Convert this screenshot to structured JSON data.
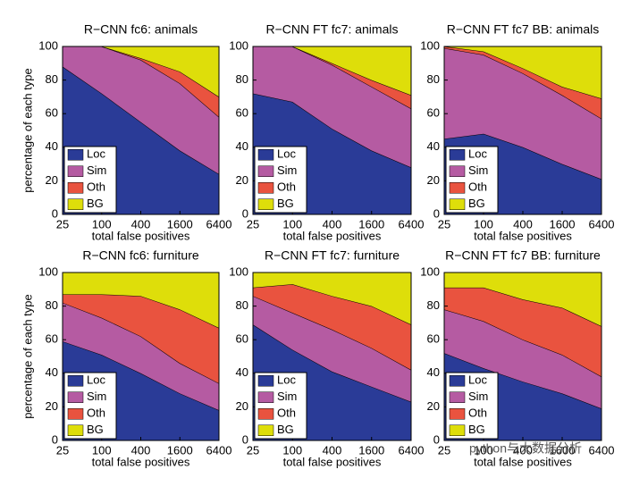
{
  "chart_data": [
    {
      "type": "area",
      "stacked": true,
      "title": "R−CNN fc6: animals",
      "xlabel": "total false positives",
      "ylabel": "percentage of each type",
      "x": [
        25,
        100,
        400,
        1600,
        6400
      ],
      "xlog": true,
      "xlim": [
        25,
        6400
      ],
      "xticks": [
        25,
        100,
        400,
        1600,
        6400
      ],
      "ylim": [
        0,
        100
      ],
      "yticks": [
        0,
        20,
        40,
        60,
        80,
        100
      ],
      "legend": "lower left",
      "series": [
        {
          "name": "Loc",
          "color": "#2a3b97",
          "values": [
            88,
            72,
            55,
            38,
            24
          ]
        },
        {
          "name": "Sim",
          "color": "#b55ba2",
          "values": [
            12,
            28,
            37,
            40,
            34
          ]
        },
        {
          "name": "Oth",
          "color": "#e9533f",
          "values": [
            0,
            0,
            1,
            7,
            12
          ]
        },
        {
          "name": "BG",
          "color": "#dede0a",
          "values": [
            0,
            0,
            7,
            15,
            30
          ]
        }
      ]
    },
    {
      "type": "area",
      "stacked": true,
      "title": "R−CNN FT fc7: animals",
      "xlabel": "total false positives",
      "x": [
        25,
        100,
        400,
        1600,
        6400
      ],
      "xlog": true,
      "xlim": [
        25,
        6400
      ],
      "xticks": [
        25,
        100,
        400,
        1600,
        6400
      ],
      "ylim": [
        0,
        100
      ],
      "yticks": [
        0,
        20,
        40,
        60,
        80,
        100
      ],
      "legend": "lower left",
      "series": [
        {
          "name": "Loc",
          "color": "#2a3b97",
          "values": [
            72,
            67,
            51,
            38,
            28
          ]
        },
        {
          "name": "Sim",
          "color": "#b55ba2",
          "values": [
            28,
            33,
            38,
            38,
            35
          ]
        },
        {
          "name": "Oth",
          "color": "#e9533f",
          "values": [
            0,
            0,
            1,
            4,
            8
          ]
        },
        {
          "name": "BG",
          "color": "#dede0a",
          "values": [
            0,
            0,
            10,
            20,
            29
          ]
        }
      ]
    },
    {
      "type": "area",
      "stacked": true,
      "title": "R−CNN FT fc7 BB: animals",
      "xlabel": "total false positives",
      "x": [
        25,
        100,
        400,
        1600,
        6400
      ],
      "xlog": true,
      "xlim": [
        25,
        6400
      ],
      "xticks": [
        25,
        100,
        400,
        1600,
        6400
      ],
      "ylim": [
        0,
        100
      ],
      "yticks": [
        0,
        20,
        40,
        60,
        80,
        100
      ],
      "legend": "lower left",
      "series": [
        {
          "name": "Loc",
          "color": "#2a3b97",
          "values": [
            45,
            48,
            40,
            30,
            21
          ]
        },
        {
          "name": "Sim",
          "color": "#b55ba2",
          "values": [
            54,
            47,
            44,
            41,
            36
          ]
        },
        {
          "name": "Oth",
          "color": "#e9533f",
          "values": [
            1,
            2,
            3,
            5,
            12
          ]
        },
        {
          "name": "BG",
          "color": "#dede0a",
          "values": [
            0,
            3,
            13,
            24,
            31
          ]
        }
      ]
    },
    {
      "type": "area",
      "stacked": true,
      "title": "R−CNN fc6: furniture",
      "xlabel": "total false positives",
      "ylabel": "percentage of each type",
      "x": [
        25,
        100,
        400,
        1600,
        6400
      ],
      "xlog": true,
      "xlim": [
        25,
        6400
      ],
      "xticks": [
        25,
        100,
        400,
        1600,
        6400
      ],
      "ylim": [
        0,
        100
      ],
      "yticks": [
        0,
        20,
        40,
        60,
        80,
        100
      ],
      "legend": "lower left",
      "series": [
        {
          "name": "Loc",
          "color": "#2a3b97",
          "values": [
            59,
            51,
            40,
            28,
            18
          ]
        },
        {
          "name": "Sim",
          "color": "#b55ba2",
          "values": [
            23,
            22,
            22,
            18,
            16
          ]
        },
        {
          "name": "Oth",
          "color": "#e9533f",
          "values": [
            5,
            14,
            24,
            32,
            33
          ]
        },
        {
          "name": "BG",
          "color": "#dede0a",
          "values": [
            13,
            13,
            14,
            22,
            33
          ]
        }
      ]
    },
    {
      "type": "area",
      "stacked": true,
      "title": "R−CNN FT fc7: furniture",
      "xlabel": "total false positives",
      "x": [
        25,
        100,
        400,
        1600,
        6400
      ],
      "xlog": true,
      "xlim": [
        25,
        6400
      ],
      "xticks": [
        25,
        100,
        400,
        1600,
        6400
      ],
      "ylim": [
        0,
        100
      ],
      "yticks": [
        0,
        20,
        40,
        60,
        80,
        100
      ],
      "legend": "lower left",
      "series": [
        {
          "name": "Loc",
          "color": "#2a3b97",
          "values": [
            69,
            54,
            41,
            32,
            23
          ]
        },
        {
          "name": "Sim",
          "color": "#b55ba2",
          "values": [
            17,
            22,
            25,
            23,
            19
          ]
        },
        {
          "name": "Oth",
          "color": "#e9533f",
          "values": [
            5,
            17,
            20,
            25,
            27
          ]
        },
        {
          "name": "BG",
          "color": "#dede0a",
          "values": [
            9,
            7,
            14,
            20,
            31
          ]
        }
      ]
    },
    {
      "type": "area",
      "stacked": true,
      "title": "R−CNN FT fc7 BB: furniture",
      "xlabel": "total false positives",
      "x": [
        25,
        100,
        400,
        1600,
        6400
      ],
      "xlog": true,
      "xlim": [
        25,
        6400
      ],
      "xticks": [
        25,
        100,
        400,
        1600,
        6400
      ],
      "ylim": [
        0,
        100
      ],
      "yticks": [
        0,
        20,
        40,
        60,
        80,
        100
      ],
      "legend": "lower left",
      "series": [
        {
          "name": "Loc",
          "color": "#2a3b97",
          "values": [
            52,
            43,
            35,
            28,
            19
          ]
        },
        {
          "name": "Sim",
          "color": "#b55ba2",
          "values": [
            26,
            28,
            25,
            23,
            19
          ]
        },
        {
          "name": "Oth",
          "color": "#e9533f",
          "values": [
            13,
            20,
            24,
            28,
            30
          ]
        },
        {
          "name": "BG",
          "color": "#dede0a",
          "values": [
            9,
            9,
            16,
            21,
            32
          ]
        }
      ]
    }
  ],
  "watermark": "python与大数据分析"
}
